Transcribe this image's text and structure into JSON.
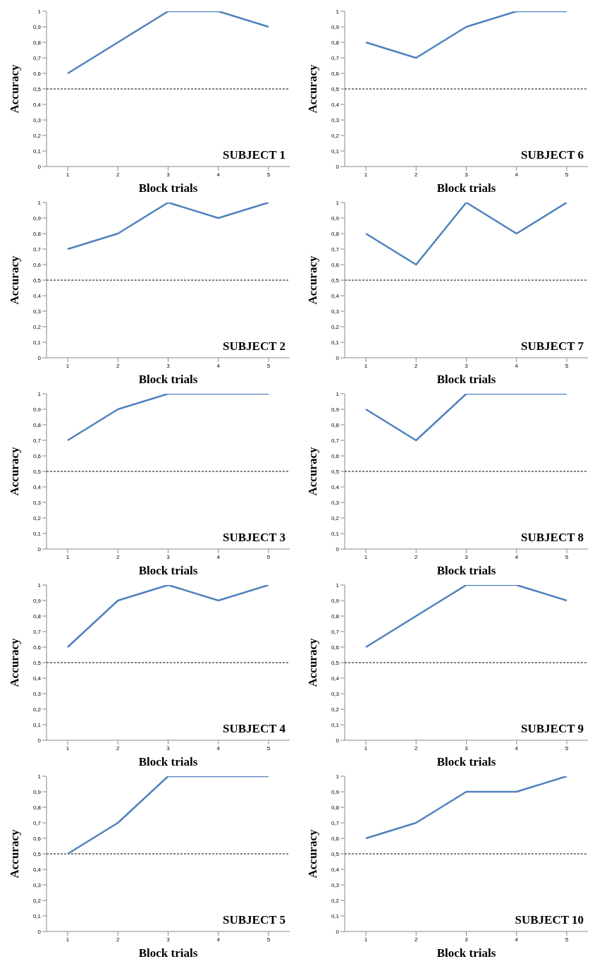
{
  "chart_data": [
    {
      "type": "line",
      "title": "SUBJECT 1",
      "xlabel": "Block trials",
      "ylabel": "Accuracy",
      "categories": [
        "1",
        "2",
        "3",
        "4",
        "5"
      ],
      "series": [
        {
          "color": "#4f81bd",
          "values": [
            0.6,
            0.8,
            1,
            1,
            0.9
          ]
        }
      ],
      "ylim": [
        0,
        1
      ],
      "yticks": [
        {
          "value": 0,
          "label": "0"
        },
        {
          "value": 0.1,
          "label": "0,1"
        },
        {
          "value": 0.2,
          "label": "0,2"
        },
        {
          "value": 0.3,
          "label": "0,3"
        },
        {
          "value": 0.4,
          "label": "0,4"
        },
        {
          "value": 0.5,
          "label": "0,5"
        },
        {
          "value": 0.6,
          "label": "0,6"
        },
        {
          "value": 0.7,
          "label": "0,7"
        },
        {
          "value": 0.8,
          "label": "0,8"
        },
        {
          "value": 0.9,
          "label": "0,9"
        },
        {
          "value": 1,
          "label": "1"
        }
      ],
      "ref_lines": [
        {
          "axis": "y",
          "value": 0.5,
          "color": "#000000",
          "line_style": "dashed"
        }
      ]
    },
    {
      "type": "line",
      "title": "SUBJECT 6",
      "xlabel": "Block trials",
      "ylabel": "Accuracy",
      "categories": [
        "1",
        "2",
        "3",
        "4",
        "5"
      ],
      "series": [
        {
          "color": "#4f81bd",
          "values": [
            0.8,
            0.7,
            0.9,
            1,
            1
          ]
        }
      ],
      "ylim": [
        0,
        1
      ],
      "yticks": [
        {
          "value": 0,
          "label": "0"
        },
        {
          "value": 0.1,
          "label": "0,1"
        },
        {
          "value": 0.2,
          "label": "0,2"
        },
        {
          "value": 0.3,
          "label": "0,3"
        },
        {
          "value": 0.4,
          "label": "0,4"
        },
        {
          "value": 0.5,
          "label": "0,5"
        },
        {
          "value": 0.6,
          "label": "0,6"
        },
        {
          "value": 0.7,
          "label": "0,7"
        },
        {
          "value": 0.8,
          "label": "0,8"
        },
        {
          "value": 0.9,
          "label": "0,9"
        },
        {
          "value": 1,
          "label": "1"
        }
      ],
      "ref_lines": [
        {
          "axis": "y",
          "value": 0.5,
          "color": "#000000",
          "line_style": "dashed"
        }
      ]
    },
    {
      "type": "line",
      "title": "SUBJECT 2",
      "xlabel": "Block trials",
      "ylabel": "Accuracy",
      "categories": [
        "1",
        "2",
        "3",
        "4",
        "5"
      ],
      "series": [
        {
          "color": "#4f81bd",
          "values": [
            0.7,
            0.8,
            1,
            0.9,
            1
          ]
        }
      ],
      "ylim": [
        0,
        1
      ],
      "yticks": [
        {
          "value": 0,
          "label": "0"
        },
        {
          "value": 0.1,
          "label": "0,1"
        },
        {
          "value": 0.2,
          "label": "0,2"
        },
        {
          "value": 0.3,
          "label": "0,3"
        },
        {
          "value": 0.4,
          "label": "0,4"
        },
        {
          "value": 0.5,
          "label": "0,5"
        },
        {
          "value": 0.6,
          "label": "0,6"
        },
        {
          "value": 0.7,
          "label": "0,7"
        },
        {
          "value": 0.8,
          "label": "0,8"
        },
        {
          "value": 0.9,
          "label": "0,9"
        },
        {
          "value": 1,
          "label": "1"
        }
      ],
      "ref_lines": [
        {
          "axis": "y",
          "value": 0.5,
          "color": "#000000",
          "line_style": "dashed"
        }
      ]
    },
    {
      "type": "line",
      "title": "SUBJECT 7",
      "xlabel": "Block trials",
      "ylabel": "Accuracy",
      "categories": [
        "1",
        "2",
        "3",
        "4",
        "5"
      ],
      "series": [
        {
          "color": "#4f81bd",
          "values": [
            0.8,
            0.6,
            1,
            0.8,
            1
          ]
        }
      ],
      "ylim": [
        0,
        1
      ],
      "yticks": [
        {
          "value": 0,
          "label": "0"
        },
        {
          "value": 0.1,
          "label": "0,1"
        },
        {
          "value": 0.2,
          "label": "0,2"
        },
        {
          "value": 0.3,
          "label": "0,3"
        },
        {
          "value": 0.4,
          "label": "0,4"
        },
        {
          "value": 0.5,
          "label": "0,5"
        },
        {
          "value": 0.6,
          "label": "0,6"
        },
        {
          "value": 0.7,
          "label": "0,7"
        },
        {
          "value": 0.8,
          "label": "0,8"
        },
        {
          "value": 0.9,
          "label": "0,9"
        },
        {
          "value": 1,
          "label": "1"
        }
      ],
      "ref_lines": [
        {
          "axis": "y",
          "value": 0.5,
          "color": "#000000",
          "line_style": "dashed"
        }
      ]
    },
    {
      "type": "line",
      "title": "SUBJECT 3",
      "xlabel": "Block trials",
      "ylabel": "Accuracy",
      "categories": [
        "1",
        "2",
        "3",
        "4",
        "5"
      ],
      "series": [
        {
          "color": "#4f81bd",
          "values": [
            0.7,
            0.9,
            1,
            1,
            1
          ]
        }
      ],
      "ylim": [
        0,
        1
      ],
      "yticks": [
        {
          "value": 0,
          "label": "0"
        },
        {
          "value": 0.1,
          "label": "0,1"
        },
        {
          "value": 0.2,
          "label": "0,2"
        },
        {
          "value": 0.3,
          "label": "0,3"
        },
        {
          "value": 0.4,
          "label": "0,4"
        },
        {
          "value": 0.5,
          "label": "0,5"
        },
        {
          "value": 0.6,
          "label": "0,6"
        },
        {
          "value": 0.7,
          "label": "0,7"
        },
        {
          "value": 0.8,
          "label": "0,8"
        },
        {
          "value": 0.9,
          "label": "0,9"
        },
        {
          "value": 1,
          "label": "1"
        }
      ],
      "ref_lines": [
        {
          "axis": "y",
          "value": 0.5,
          "color": "#000000",
          "line_style": "dashed"
        }
      ]
    },
    {
      "type": "line",
      "title": "SUBJECT 8",
      "xlabel": "Block trials",
      "ylabel": "Accuracy",
      "categories": [
        "1",
        "2",
        "3",
        "4",
        "5"
      ],
      "series": [
        {
          "color": "#4f81bd",
          "values": [
            0.9,
            0.7,
            1,
            1,
            1
          ]
        }
      ],
      "ylim": [
        0,
        1
      ],
      "yticks": [
        {
          "value": 0,
          "label": "0"
        },
        {
          "value": 0.1,
          "label": "0,1"
        },
        {
          "value": 0.2,
          "label": "0,2"
        },
        {
          "value": 0.3,
          "label": "0,3"
        },
        {
          "value": 0.4,
          "label": "0,4"
        },
        {
          "value": 0.5,
          "label": "0,5"
        },
        {
          "value": 0.6,
          "label": "0,6"
        },
        {
          "value": 0.7,
          "label": "0,7"
        },
        {
          "value": 0.8,
          "label": "0,8"
        },
        {
          "value": 0.9,
          "label": "0,9"
        },
        {
          "value": 1,
          "label": "1"
        }
      ],
      "ref_lines": [
        {
          "axis": "y",
          "value": 0.5,
          "color": "#000000",
          "line_style": "dashed"
        }
      ]
    },
    {
      "type": "line",
      "title": "SUBJECT 4",
      "xlabel": "Block trials",
      "ylabel": "Accuracy",
      "categories": [
        "1",
        "2",
        "3",
        "4",
        "5"
      ],
      "series": [
        {
          "color": "#4f81bd",
          "values": [
            0.6,
            0.9,
            1,
            0.9,
            1
          ]
        }
      ],
      "ylim": [
        0,
        1
      ],
      "yticks": [
        {
          "value": 0,
          "label": "0"
        },
        {
          "value": 0.1,
          "label": "0,1"
        },
        {
          "value": 0.2,
          "label": "0,2"
        },
        {
          "value": 0.3,
          "label": "0,3"
        },
        {
          "value": 0.4,
          "label": "0,4"
        },
        {
          "value": 0.5,
          "label": "0,5"
        },
        {
          "value": 0.6,
          "label": "0,6"
        },
        {
          "value": 0.7,
          "label": "0,7"
        },
        {
          "value": 0.8,
          "label": "0,8"
        },
        {
          "value": 0.9,
          "label": "0,9"
        },
        {
          "value": 1,
          "label": "1"
        }
      ],
      "ref_lines": [
        {
          "axis": "y",
          "value": 0.5,
          "color": "#000000",
          "line_style": "dashed"
        }
      ]
    },
    {
      "type": "line",
      "title": "SUBJECT 9",
      "xlabel": "Block trials",
      "ylabel": "Accuracy",
      "categories": [
        "1",
        "2",
        "3",
        "4",
        "5"
      ],
      "series": [
        {
          "color": "#4f81bd",
          "values": [
            0.6,
            0.8,
            1,
            1,
            0.9
          ]
        }
      ],
      "ylim": [
        0,
        1
      ],
      "yticks": [
        {
          "value": 0,
          "label": "0"
        },
        {
          "value": 0.1,
          "label": "0,1"
        },
        {
          "value": 0.2,
          "label": "0,2"
        },
        {
          "value": 0.3,
          "label": "0,3"
        },
        {
          "value": 0.4,
          "label": "0,4"
        },
        {
          "value": 0.5,
          "label": "0,5"
        },
        {
          "value": 0.6,
          "label": "0,6"
        },
        {
          "value": 0.7,
          "label": "0,7"
        },
        {
          "value": 0.8,
          "label": "0,8"
        },
        {
          "value": 0.9,
          "label": "0,9"
        },
        {
          "value": 1,
          "label": "1"
        }
      ],
      "ref_lines": [
        {
          "axis": "y",
          "value": 0.5,
          "color": "#000000",
          "line_style": "dashed"
        }
      ]
    },
    {
      "type": "line",
      "title": "SUBJECT 5",
      "xlabel": "Block trials",
      "ylabel": "Accuracy",
      "categories": [
        "1",
        "2",
        "3",
        "4",
        "5"
      ],
      "series": [
        {
          "color": "#4f81bd",
          "values": [
            0.5,
            0.7,
            1,
            1,
            1
          ]
        }
      ],
      "ylim": [
        0,
        1
      ],
      "yticks": [
        {
          "value": 0,
          "label": "0"
        },
        {
          "value": 0.1,
          "label": "0,1"
        },
        {
          "value": 0.2,
          "label": "0,2"
        },
        {
          "value": 0.3,
          "label": "0,3"
        },
        {
          "value": 0.4,
          "label": "0,4"
        },
        {
          "value": 0.5,
          "label": "0,5"
        },
        {
          "value": 0.6,
          "label": "0,6"
        },
        {
          "value": 0.7,
          "label": "0,7"
        },
        {
          "value": 0.8,
          "label": "0,8"
        },
        {
          "value": 0.9,
          "label": "0,9"
        },
        {
          "value": 1,
          "label": "1"
        }
      ],
      "ref_lines": [
        {
          "axis": "y",
          "value": 0.5,
          "color": "#000000",
          "line_style": "dashed"
        }
      ]
    },
    {
      "type": "line",
      "title": "SUBJECT 10",
      "xlabel": "Block trials",
      "ylabel": "Accuracy",
      "categories": [
        "1",
        "2",
        "3",
        "4",
        "5"
      ],
      "series": [
        {
          "color": "#4f81bd",
          "values": [
            0.6,
            0.7,
            0.9,
            0.9,
            1
          ]
        }
      ],
      "ylim": [
        0,
        1
      ],
      "yticks": [
        {
          "value": 0,
          "label": "0"
        },
        {
          "value": 0.1,
          "label": "0,1"
        },
        {
          "value": 0.2,
          "label": "0,2"
        },
        {
          "value": 0.3,
          "label": "0,3"
        },
        {
          "value": 0.4,
          "label": "0,4"
        },
        {
          "value": 0.5,
          "label": "0,5"
        },
        {
          "value": 0.6,
          "label": "0,6"
        },
        {
          "value": 0.7,
          "label": "0,7"
        },
        {
          "value": 0.8,
          "label": "0,8"
        },
        {
          "value": 0.9,
          "label": "0,9"
        },
        {
          "value": 1,
          "label": "1"
        }
      ],
      "ref_lines": [
        {
          "axis": "y",
          "value": 0.5,
          "color": "#000000",
          "line_style": "dashed"
        }
      ]
    }
  ]
}
